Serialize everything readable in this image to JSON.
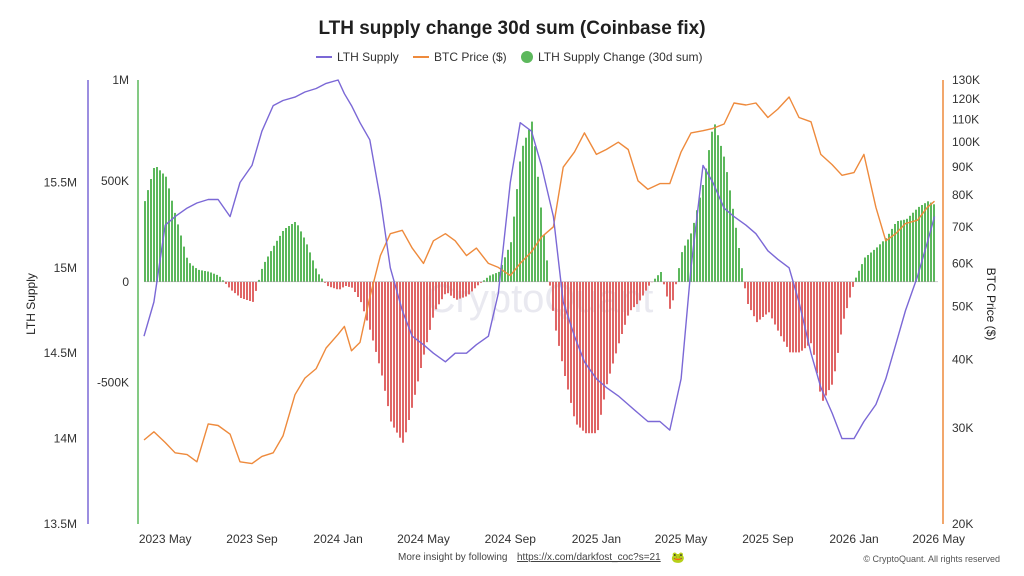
{
  "chart_data": {
    "type": "line",
    "title": "LTH supply change 30d sum (Coinbase fix)",
    "legend": {
      "placement": "top-center",
      "entries": [
        {
          "label": "LTH Supply",
          "color": "#7b68d6",
          "marker": "line"
        },
        {
          "label": "BTC Price ($)",
          "color": "#ee8a3c",
          "marker": "line"
        },
        {
          "label": "LTH Supply Change (30d sum)",
          "color": "#5cb85c",
          "marker": "dot"
        }
      ]
    },
    "x_axis": {
      "type": "time",
      "tick_labels": [
        "2023 May",
        "2023 Sep",
        "2024 Jan",
        "2024 May",
        "2024 Sep",
        "2025 Jan",
        "2025 May",
        "2025 Sep",
        "2026 Jan",
        "2026 May"
      ],
      "range": [
        "2023-04-01",
        "2026-04-30"
      ]
    },
    "y_left_outer": {
      "label": "LTH Supply",
      "ticks": [
        "13.5M",
        "14M",
        "14.5M",
        "15M",
        "15.5M"
      ],
      "range": [
        13.5,
        16.1
      ],
      "unit": "M"
    },
    "y_left_inner": {
      "label": "",
      "ticks": [
        "-500K",
        "0",
        "500K",
        "1M"
      ],
      "range": [
        -1200,
        1000
      ],
      "unit": "K"
    },
    "y_right": {
      "label": "BTC Price ($)",
      "scale": "log",
      "ticks": [
        "20K",
        "30K",
        "40K",
        "50K",
        "60K",
        "70K",
        "80K",
        "90K",
        "100K",
        "110K",
        "120K",
        "130K"
      ],
      "range": [
        20,
        130
      ],
      "unit": "K"
    },
    "series": [
      {
        "name": "LTH Supply",
        "color": "#7b68d6",
        "axis": "y_left_outer",
        "x": [
          "2023-04-01",
          "2023-04-15",
          "2023-05-01",
          "2023-05-15",
          "2023-06-01",
          "2023-06-15",
          "2023-07-01",
          "2023-07-15",
          "2023-08-01",
          "2023-08-15",
          "2023-09-01",
          "2023-09-15",
          "2023-10-01",
          "2023-10-15",
          "2023-11-01",
          "2023-11-15",
          "2023-12-01",
          "2023-12-15",
          "2024-01-01",
          "2024-01-10",
          "2024-01-20",
          "2024-02-01",
          "2024-02-15",
          "2024-03-01",
          "2024-03-15",
          "2024-04-01",
          "2024-04-15",
          "2024-05-01",
          "2024-05-15",
          "2024-06-01",
          "2024-06-15",
          "2024-07-01",
          "2024-07-15",
          "2024-08-01",
          "2024-08-15",
          "2024-09-01",
          "2024-09-15",
          "2024-10-01",
          "2024-10-15",
          "2024-11-01",
          "2024-11-15",
          "2024-12-01",
          "2024-12-15",
          "2025-01-01",
          "2025-01-15",
          "2025-02-01",
          "2025-02-15",
          "2025-03-01",
          "2025-03-15",
          "2025-04-01",
          "2025-04-15",
          "2025-05-01",
          "2025-05-15",
          "2025-06-01",
          "2025-06-15",
          "2025-07-01",
          "2025-07-15",
          "2025-08-01",
          "2025-08-15",
          "2025-09-01",
          "2025-09-15",
          "2025-10-01",
          "2025-10-15",
          "2025-11-01",
          "2025-11-15",
          "2025-12-01",
          "2025-12-15",
          "2026-01-01",
          "2026-01-15",
          "2026-02-01",
          "2026-02-15",
          "2026-03-01",
          "2026-03-15",
          "2026-04-01",
          "2026-04-15",
          "2026-04-25"
        ],
        "values": [
          14.6,
          14.8,
          15.25,
          15.3,
          15.35,
          15.38,
          15.4,
          15.4,
          15.3,
          15.5,
          15.6,
          15.8,
          15.95,
          15.98,
          16.0,
          16.03,
          16.05,
          16.08,
          16.1,
          16.02,
          15.95,
          15.85,
          15.75,
          15.4,
          15.0,
          14.75,
          14.6,
          14.55,
          14.5,
          14.45,
          14.5,
          14.5,
          14.55,
          14.6,
          14.85,
          15.5,
          15.85,
          15.8,
          15.6,
          15.3,
          14.8,
          14.6,
          14.45,
          14.35,
          14.3,
          14.25,
          14.2,
          14.15,
          14.1,
          14.1,
          14.05,
          14.35,
          15.0,
          15.6,
          15.5,
          15.35,
          15.3,
          15.25,
          15.2,
          15.1,
          15.05,
          15.0,
          14.8,
          14.5,
          14.3,
          14.15,
          14.0,
          14.0,
          14.1,
          14.2,
          14.35,
          14.55,
          14.75,
          14.95,
          15.15,
          15.3
        ]
      },
      {
        "name": "BTC Price ($)",
        "color": "#ee8a3c",
        "axis": "y_right",
        "x": [
          "2023-04-01",
          "2023-04-15",
          "2023-05-01",
          "2023-05-15",
          "2023-06-01",
          "2023-06-15",
          "2023-07-01",
          "2023-07-15",
          "2023-08-01",
          "2023-08-15",
          "2023-09-01",
          "2023-09-15",
          "2023-10-01",
          "2023-10-15",
          "2023-11-01",
          "2023-11-15",
          "2023-12-01",
          "2023-12-15",
          "2024-01-01",
          "2024-01-10",
          "2024-01-20",
          "2024-02-01",
          "2024-02-15",
          "2024-03-01",
          "2024-03-15",
          "2024-04-01",
          "2024-04-15",
          "2024-05-01",
          "2024-05-15",
          "2024-06-01",
          "2024-06-15",
          "2024-07-01",
          "2024-07-15",
          "2024-08-01",
          "2024-08-15",
          "2024-09-01",
          "2024-09-15",
          "2024-10-01",
          "2024-10-15",
          "2024-11-01",
          "2024-11-15",
          "2024-12-01",
          "2024-12-15",
          "2025-01-01",
          "2025-01-15",
          "2025-02-01",
          "2025-02-15",
          "2025-03-01",
          "2025-03-15",
          "2025-04-01",
          "2025-04-15",
          "2025-05-01",
          "2025-05-15",
          "2025-06-01",
          "2025-06-15",
          "2025-07-01",
          "2025-07-15",
          "2025-08-01",
          "2025-08-15",
          "2025-09-01",
          "2025-09-15",
          "2025-10-01",
          "2025-10-15",
          "2025-11-01",
          "2025-11-15",
          "2025-12-01",
          "2025-12-15",
          "2026-01-01",
          "2026-01-15",
          "2026-02-01",
          "2026-02-15",
          "2026-03-01",
          "2026-03-15",
          "2026-04-01",
          "2026-04-15",
          "2026-04-25"
        ],
        "values": [
          28.5,
          29.5,
          28.2,
          27.0,
          26.8,
          26.0,
          30.5,
          30.3,
          29.2,
          26.0,
          25.8,
          26.6,
          27.0,
          29.0,
          34.5,
          37.0,
          38.5,
          42.0,
          44.5,
          46.0,
          41.5,
          43.0,
          52.0,
          62.0,
          68.0,
          69.0,
          64.0,
          60.0,
          66.0,
          68.0,
          66.0,
          62.0,
          64.0,
          60.0,
          59.0,
          57.0,
          60.0,
          63.0,
          67.0,
          70.0,
          90.0,
          96.0,
          104.0,
          95.0,
          97.0,
          100.0,
          97.0,
          85.0,
          82.0,
          84.0,
          84.0,
          96.0,
          104.0,
          105.0,
          106.0,
          108.0,
          118.0,
          117.0,
          118.0,
          111.0,
          115.0,
          121.0,
          111.0,
          109.0,
          95.0,
          91.0,
          87.0,
          88.0,
          95.0,
          76.0,
          66.0,
          68.0,
          71.0,
          72.0,
          76.0,
          78.0
        ]
      },
      {
        "name": "LTH Supply Change (30d sum)",
        "color": "#5cb85c",
        "negative_color": "#e06666",
        "axis": "y_left_inner",
        "display": "bar",
        "x": [
          "2023-04-01",
          "2023-04-15",
          "2023-05-01",
          "2023-05-15",
          "2023-06-01",
          "2023-06-15",
          "2023-07-01",
          "2023-07-15",
          "2023-08-01",
          "2023-08-15",
          "2023-09-01",
          "2023-09-15",
          "2023-10-01",
          "2023-10-15",
          "2023-11-01",
          "2023-11-15",
          "2023-12-01",
          "2023-12-15",
          "2024-01-01",
          "2024-01-10",
          "2024-01-20",
          "2024-02-01",
          "2024-02-15",
          "2024-03-01",
          "2024-03-15",
          "2024-04-01",
          "2024-04-15",
          "2024-05-01",
          "2024-05-15",
          "2024-06-01",
          "2024-06-15",
          "2024-07-01",
          "2024-07-15",
          "2024-08-01",
          "2024-08-15",
          "2024-09-01",
          "2024-09-15",
          "2024-10-01",
          "2024-10-15",
          "2024-11-01",
          "2024-11-15",
          "2024-12-01",
          "2024-12-15",
          "2025-01-01",
          "2025-01-15",
          "2025-02-01",
          "2025-02-15",
          "2025-03-01",
          "2025-03-15",
          "2025-04-01",
          "2025-04-15",
          "2025-05-01",
          "2025-05-15",
          "2025-06-01",
          "2025-06-15",
          "2025-07-01",
          "2025-07-15",
          "2025-08-01",
          "2025-08-15",
          "2025-09-01",
          "2025-09-15",
          "2025-10-01",
          "2025-10-15",
          "2025-11-01",
          "2025-11-15",
          "2025-12-01",
          "2025-12-15",
          "2026-01-01",
          "2026-01-15",
          "2026-02-01",
          "2026-02-15",
          "2026-03-01",
          "2026-03-15",
          "2026-04-01",
          "2026-04-15",
          "2026-04-25"
        ],
        "values": [
          400,
          580,
          520,
          320,
          100,
          60,
          50,
          30,
          -40,
          -80,
          -100,
          80,
          180,
          260,
          300,
          200,
          50,
          -20,
          -40,
          -20,
          -30,
          -100,
          -250,
          -450,
          -700,
          -800,
          -600,
          -350,
          -150,
          -50,
          -90,
          -70,
          -20,
          30,
          50,
          200,
          650,
          800,
          300,
          -200,
          -450,
          -700,
          -750,
          -750,
          -500,
          -300,
          -150,
          -100,
          -20,
          50,
          -150,
          150,
          250,
          500,
          800,
          600,
          300,
          -100,
          -200,
          -150,
          -250,
          -350,
          -350,
          -300,
          -600,
          -500,
          -200,
          10,
          120,
          170,
          220,
          300,
          310,
          370,
          400,
          380
        ]
      }
    ]
  },
  "footer": {
    "insight_text": "More insight by following",
    "link_text": "https://x.com/darkfost_coc?s=21",
    "copyright": "© CryptoQuant. All rights reserved",
    "watermark": "CryptoQuant"
  }
}
